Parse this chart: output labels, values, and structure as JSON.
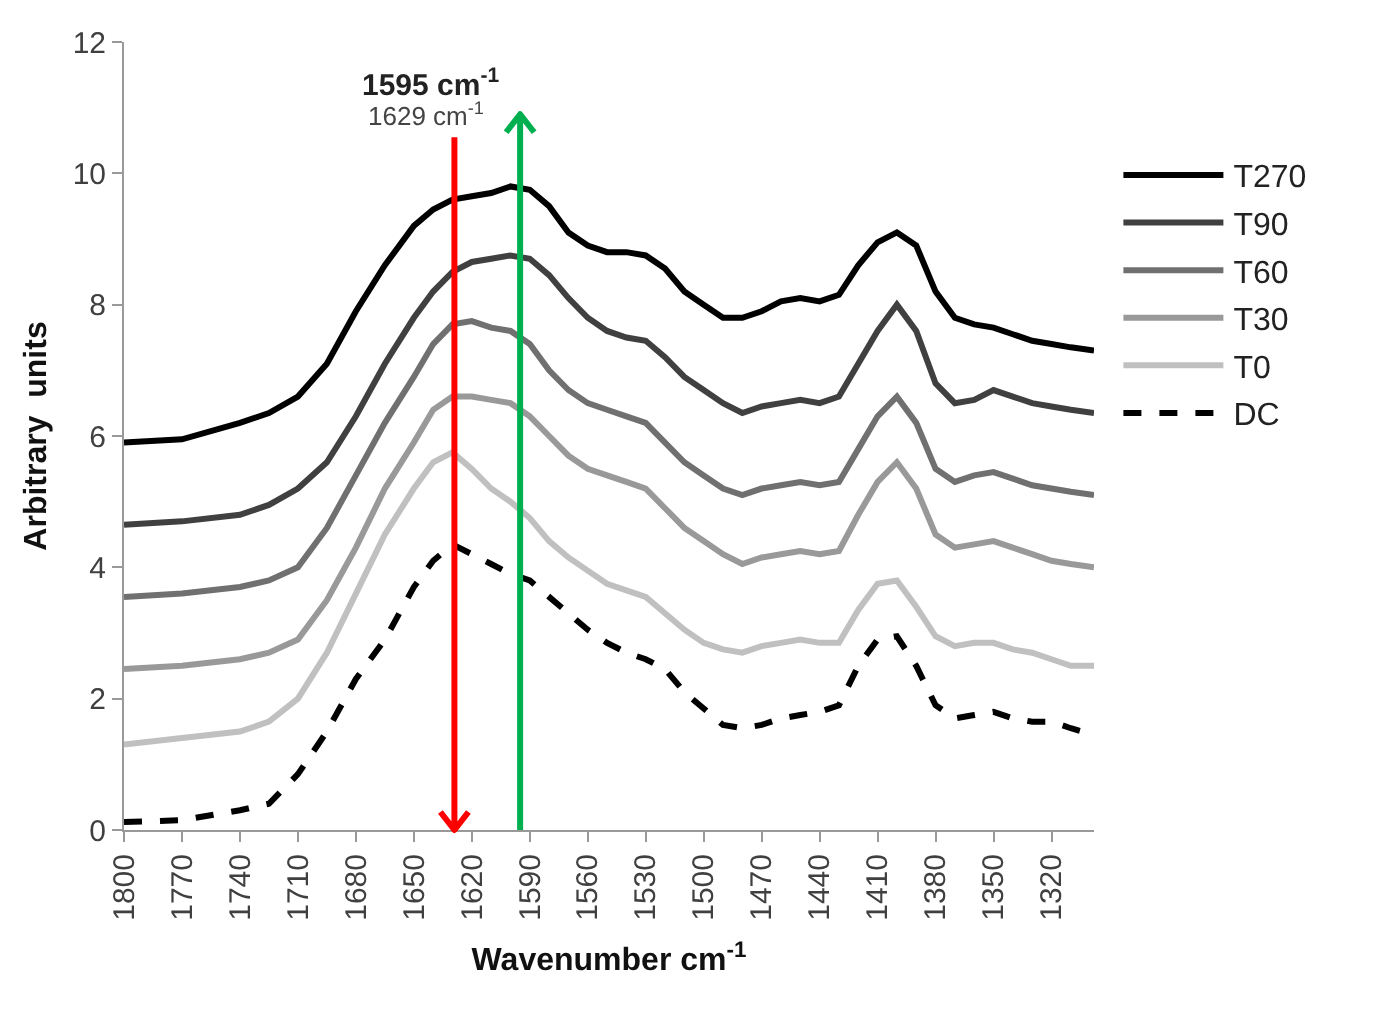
{
  "chart_data": {
    "type": "line",
    "xlabel": "Wavenumber cm$^{-1}$",
    "ylabel": "Arbitrary  units",
    "x": [
      1800,
      1770,
      1740,
      1725,
      1710,
      1695,
      1680,
      1665,
      1650,
      1640,
      1630,
      1620,
      1610,
      1600,
      1590,
      1580,
      1570,
      1560,
      1550,
      1540,
      1530,
      1520,
      1510,
      1500,
      1490,
      1480,
      1470,
      1460,
      1450,
      1440,
      1430,
      1420,
      1410,
      1400,
      1390,
      1380,
      1370,
      1360,
      1350,
      1340,
      1330,
      1320,
      1310,
      1298
    ],
    "series": [
      {
        "name": "T270",
        "color": "#000000",
        "line_style": "solid",
        "values": [
          5.9,
          5.95,
          6.2,
          6.35,
          6.6,
          7.1,
          7.9,
          8.6,
          9.2,
          9.45,
          9.6,
          9.65,
          9.7,
          9.8,
          9.75,
          9.5,
          9.1,
          8.9,
          8.8,
          8.8,
          8.75,
          8.55,
          8.2,
          8.0,
          7.8,
          7.8,
          7.9,
          8.05,
          8.1,
          8.05,
          8.15,
          8.6,
          8.95,
          9.1,
          8.9,
          8.2,
          7.8,
          7.7,
          7.65,
          7.55,
          7.45,
          7.4,
          7.35,
          7.3
        ]
      },
      {
        "name": "T90",
        "color": "#404040",
        "line_style": "solid",
        "values": [
          4.65,
          4.7,
          4.8,
          4.95,
          5.2,
          5.6,
          6.3,
          7.1,
          7.8,
          8.2,
          8.5,
          8.65,
          8.7,
          8.75,
          8.7,
          8.45,
          8.1,
          7.8,
          7.6,
          7.5,
          7.45,
          7.2,
          6.9,
          6.7,
          6.5,
          6.35,
          6.45,
          6.5,
          6.55,
          6.5,
          6.6,
          7.1,
          7.6,
          8.0,
          7.6,
          6.8,
          6.5,
          6.55,
          6.7,
          6.6,
          6.5,
          6.45,
          6.4,
          6.35
        ]
      },
      {
        "name": "T60",
        "color": "#707070",
        "line_style": "solid",
        "values": [
          3.55,
          3.6,
          3.7,
          3.8,
          4.0,
          4.6,
          5.4,
          6.2,
          6.9,
          7.4,
          7.7,
          7.75,
          7.65,
          7.6,
          7.4,
          7.0,
          6.7,
          6.5,
          6.4,
          6.3,
          6.2,
          5.9,
          5.6,
          5.4,
          5.2,
          5.1,
          5.2,
          5.25,
          5.3,
          5.25,
          5.3,
          5.8,
          6.3,
          6.6,
          6.2,
          5.5,
          5.3,
          5.4,
          5.45,
          5.35,
          5.25,
          5.2,
          5.15,
          5.1
        ]
      },
      {
        "name": "T30",
        "color": "#999999",
        "line_style": "solid",
        "values": [
          2.45,
          2.5,
          2.6,
          2.7,
          2.9,
          3.5,
          4.3,
          5.2,
          5.9,
          6.4,
          6.6,
          6.6,
          6.55,
          6.5,
          6.3,
          6.0,
          5.7,
          5.5,
          5.4,
          5.3,
          5.2,
          4.9,
          4.6,
          4.4,
          4.2,
          4.05,
          4.15,
          4.2,
          4.25,
          4.2,
          4.25,
          4.8,
          5.3,
          5.6,
          5.2,
          4.5,
          4.3,
          4.35,
          4.4,
          4.3,
          4.2,
          4.1,
          4.05,
          4.0
        ]
      },
      {
        "name": "T0",
        "color": "#c0c0c0",
        "line_style": "solid",
        "values": [
          1.3,
          1.4,
          1.5,
          1.65,
          2.0,
          2.7,
          3.6,
          4.5,
          5.2,
          5.6,
          5.75,
          5.5,
          5.2,
          5.0,
          4.75,
          4.4,
          4.15,
          3.95,
          3.75,
          3.65,
          3.55,
          3.3,
          3.05,
          2.85,
          2.75,
          2.7,
          2.8,
          2.85,
          2.9,
          2.85,
          2.85,
          3.35,
          3.75,
          3.8,
          3.4,
          2.95,
          2.8,
          2.85,
          2.85,
          2.75,
          2.7,
          2.6,
          2.5,
          2.5
        ]
      },
      {
        "name": "DC",
        "color": "#000000",
        "line_style": "dashed",
        "values": [
          0.12,
          0.15,
          0.3,
          0.4,
          0.85,
          1.5,
          2.3,
          2.9,
          3.7,
          4.1,
          4.35,
          4.2,
          4.05,
          3.9,
          3.8,
          3.55,
          3.3,
          3.05,
          2.85,
          2.7,
          2.6,
          2.45,
          2.1,
          1.85,
          1.6,
          1.55,
          1.6,
          1.7,
          1.75,
          1.8,
          1.9,
          2.5,
          2.9,
          2.95,
          2.5,
          1.9,
          1.7,
          1.75,
          1.8,
          1.7,
          1.65,
          1.65,
          1.55,
          1.45
        ]
      }
    ],
    "xlim": [
      1800,
      1298
    ],
    "xticks": [
      1800,
      1770,
      1740,
      1710,
      1680,
      1650,
      1620,
      1590,
      1560,
      1530,
      1500,
      1470,
      1440,
      1410,
      1380,
      1350,
      1320
    ],
    "ylim": [
      0,
      12
    ],
    "yticks": [
      0,
      2,
      4,
      6,
      8,
      10,
      12
    ],
    "ref_lines": [
      {
        "axis": "x",
        "value": 1595,
        "color": "#00b050"
      },
      {
        "axis": "x",
        "value": 1629,
        "color": "#ff0000"
      }
    ],
    "annotations": [
      {
        "text": "1595 cm$^{-1}$",
        "x": 1595,
        "y": 10.9
      },
      {
        "text": "1629 cm$^{-1}$",
        "x": 1629,
        "y": 10.55
      }
    ],
    "grid": false,
    "legend": "right",
    "marker": "none"
  }
}
